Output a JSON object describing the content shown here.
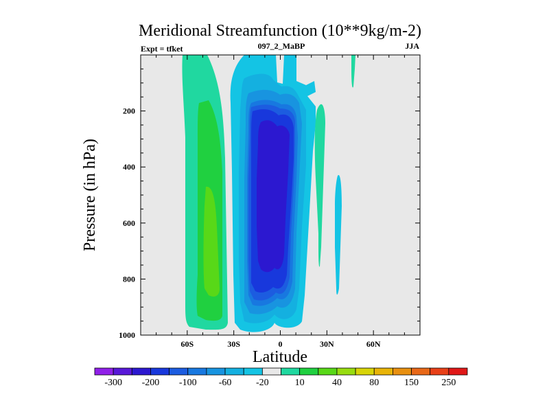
{
  "chart_data": {
    "type": "contour",
    "title": "Meridional Streamfunction (10**9kg/m-2)",
    "left_string": "Expt = tfket",
    "center_string": "097_2_MaBP",
    "right_string": "JJA",
    "xlabel": "Latitude",
    "ylabel": "Pressure (in hPa)",
    "xlim": [
      -90,
      90
    ],
    "ylim": [
      1000,
      0
    ],
    "x_ticks": [
      {
        "value": -60,
        "label": "60S"
      },
      {
        "value": -30,
        "label": "30S"
      },
      {
        "value": 0,
        "label": "0"
      },
      {
        "value": 30,
        "label": "30N"
      },
      {
        "value": 60,
        "label": "60N"
      }
    ],
    "y_ticks": [
      {
        "value": 200,
        "label": "200"
      },
      {
        "value": 400,
        "label": "400"
      },
      {
        "value": 600,
        "label": "600"
      },
      {
        "value": 800,
        "label": "800"
      },
      {
        "value": 1000,
        "label": "1000"
      }
    ],
    "background_color": "#e8e8e8",
    "contour_levels": [
      -300,
      -250,
      -200,
      -150,
      -100,
      -80,
      -60,
      -40,
      -20,
      -10,
      10,
      20,
      40,
      60,
      80,
      100,
      150,
      200,
      250,
      300
    ],
    "colorbar_labels": [
      "-300",
      "-200",
      "-100",
      "-60",
      "-20",
      "10",
      "40",
      "80",
      "150",
      "250"
    ],
    "colorbar_colors": [
      "#9020e8",
      "#5818d8",
      "#2c18d0",
      "#1838dc",
      "#1c5ce0",
      "#1878e0",
      "#1894e0",
      "#14b0e0",
      "#14c4e4",
      "#e8e8e8",
      "#20d8a0",
      "#20d040",
      "#58d818",
      "#98dc10",
      "#d8d408",
      "#e8b408",
      "#e89010",
      "#e86818",
      "#e84018",
      "#e01818"
    ],
    "regions": [
      {
        "name": "south-cell-outer",
        "fill": "#20d8a0",
        "value_range": [
          10,
          20
        ]
      },
      {
        "name": "south-cell-mid",
        "fill": "#20d040",
        "value_range": [
          20,
          40
        ]
      },
      {
        "name": "south-cell-core",
        "fill": "#58d818",
        "value_range": [
          40,
          60
        ]
      },
      {
        "name": "hadley-cell-outer",
        "fill": "#14c4e4",
        "value_range": [
          -20,
          -10
        ]
      },
      {
        "name": "hadley-cell-2",
        "fill": "#14b0e0",
        "value_range": [
          -40,
          -20
        ]
      },
      {
        "name": "hadley-cell-3",
        "fill": "#1894e0",
        "value_range": [
          -60,
          -40
        ]
      },
      {
        "name": "hadley-cell-4",
        "fill": "#1878e0",
        "value_range": [
          -80,
          -60
        ]
      },
      {
        "name": "hadley-cell-5",
        "fill": "#1c5ce0",
        "value_range": [
          -100,
          -80
        ]
      },
      {
        "name": "hadley-cell-6",
        "fill": "#1838dc",
        "value_range": [
          -150,
          -100
        ]
      },
      {
        "name": "hadley-cell-core",
        "fill": "#2c18d0",
        "value_range": [
          -200,
          -150
        ]
      },
      {
        "name": "nh-small-cell-a",
        "fill": "#20d8a0",
        "value_range": [
          10,
          20
        ]
      },
      {
        "name": "nh-small-cell-b",
        "fill": "#14c4e4",
        "value_range": [
          -20,
          -10
        ]
      },
      {
        "name": "nh-small-cell-c",
        "fill": "#20d8a0",
        "value_range": [
          10,
          20
        ]
      }
    ]
  }
}
